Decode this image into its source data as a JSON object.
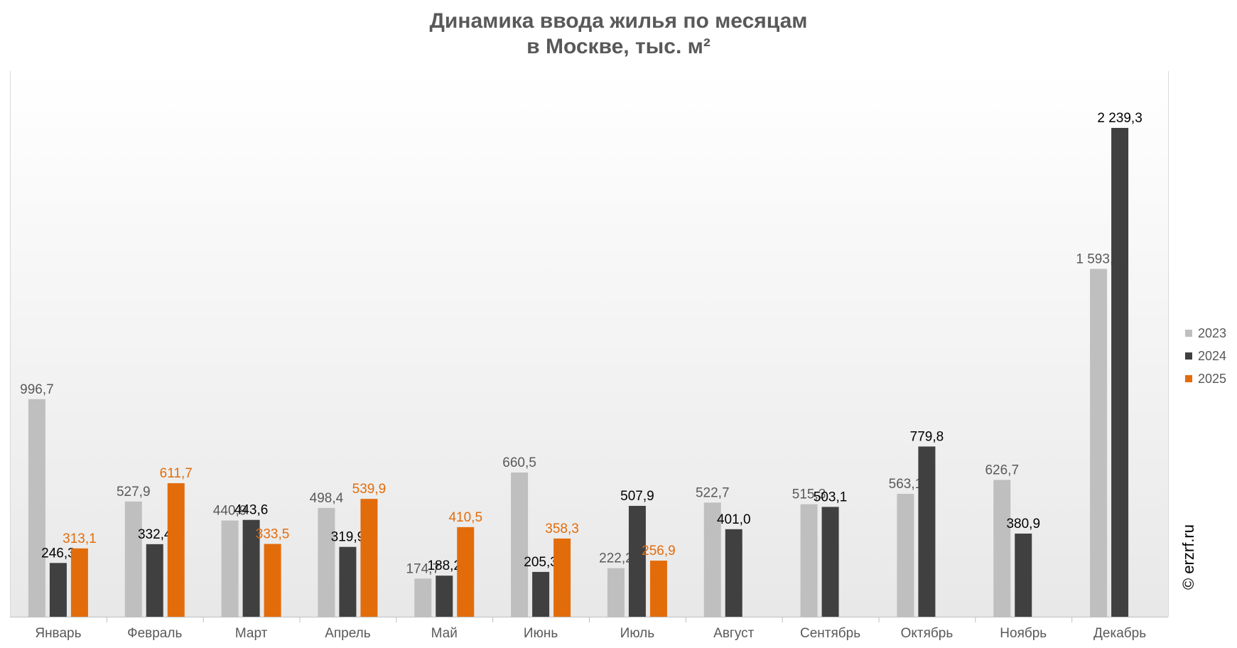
{
  "title": {
    "line1": "Динамика ввода жилья по месяцам",
    "line2": "в Москве, тыс. м²"
  },
  "copyright": "© erzrf.ru",
  "colors": {
    "s2023": "#bfbfbf",
    "s2024": "#404040",
    "s2025": "#e36c0a",
    "label2023": "#595959",
    "label2024": "#000000",
    "label2025": "#e36c0a"
  },
  "chart_data": {
    "type": "bar",
    "title": "Динамика ввода жилья по месяцам в Москве, тыс. м²",
    "xlabel": "",
    "ylabel": "",
    "ylim": [
      0,
      2500
    ],
    "grid": false,
    "legend_position": "right",
    "categories": [
      "Январь",
      "Февраль",
      "Март",
      "Апрель",
      "Май",
      "Июнь",
      "Июль",
      "Август",
      "Сентябрь",
      "Октябрь",
      "Ноябрь",
      "Декабрь"
    ],
    "series": [
      {
        "name": "2023",
        "values": [
          996.7,
          527.9,
          440.9,
          498.4,
          174.7,
          660.5,
          222.2,
          522.7,
          515.3,
          563.1,
          626.7,
          1593.4
        ],
        "labels": [
          "996,7",
          "527,9",
          "440,9",
          "498,4",
          "174,7",
          "660,5",
          "222,2",
          "522,7",
          "515,3",
          "563,1",
          "626,7",
          "1 593,4"
        ]
      },
      {
        "name": "2024",
        "values": [
          246.3,
          332.4,
          443.6,
          319.9,
          188.2,
          205.3,
          507.9,
          401.0,
          503.1,
          779.8,
          380.9,
          2239.3
        ],
        "labels": [
          "246,3",
          "332,4",
          "443,6",
          "319,9",
          "188,2",
          "205,3",
          "507,9",
          "401,0",
          "503,1",
          "779,8",
          "380,9",
          "2 239,3"
        ]
      },
      {
        "name": "2025",
        "values": [
          313.1,
          611.7,
          333.5,
          539.9,
          410.5,
          358.3,
          256.9,
          null,
          null,
          null,
          null,
          null
        ],
        "labels": [
          "313,1",
          "611,7",
          "333,5",
          "539,9",
          "410,5",
          "358,3",
          "256,9",
          "",
          "",
          "",
          "",
          ""
        ]
      }
    ]
  }
}
